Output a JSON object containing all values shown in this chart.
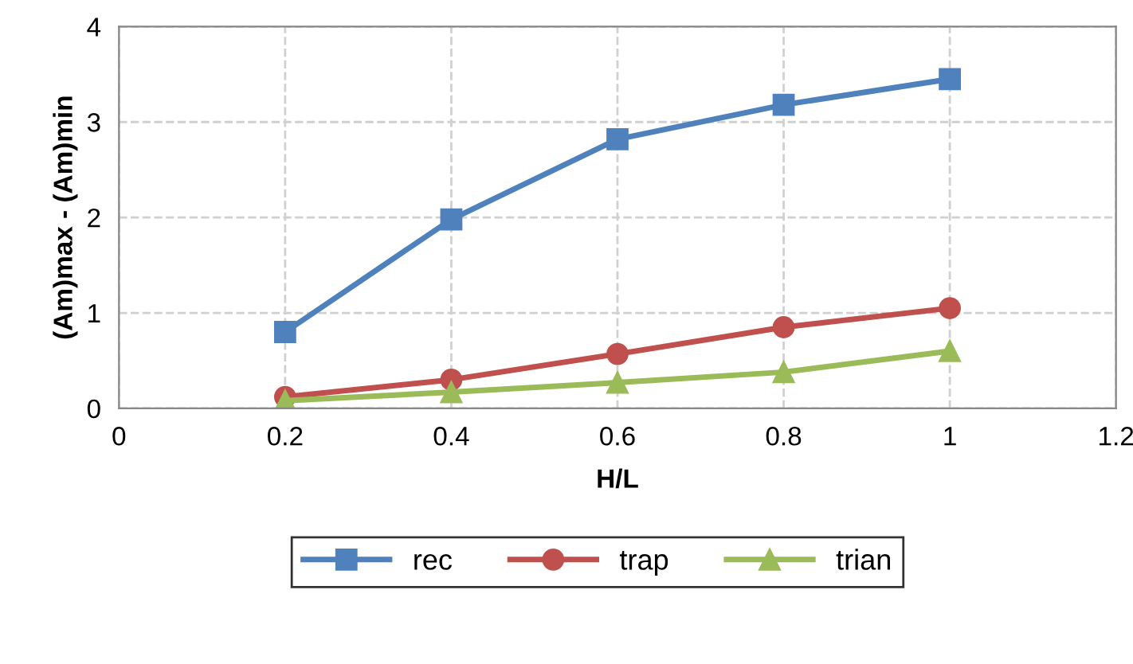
{
  "chart_data": {
    "type": "line",
    "xlabel": "H/L",
    "ylabel": "(Am)max - (Am)min",
    "x": [
      0.2,
      0.4,
      0.6,
      0.8,
      1.0
    ],
    "series": [
      {
        "name": "rec",
        "color": "#4f81bd",
        "marker": "square",
        "values": [
          0.8,
          1.98,
          2.82,
          3.18,
          3.45
        ]
      },
      {
        "name": "trap",
        "color": "#c0504d",
        "marker": "circle",
        "values": [
          0.12,
          0.3,
          0.57,
          0.85,
          1.05
        ]
      },
      {
        "name": "trian",
        "color": "#9bbb59",
        "marker": "triangle",
        "values": [
          0.08,
          0.17,
          0.27,
          0.38,
          0.6
        ]
      }
    ],
    "xlim": [
      0,
      1.2
    ],
    "xticks": [
      0,
      0.2,
      0.4,
      0.6,
      0.8,
      1,
      1.2
    ],
    "ylim": [
      0,
      4
    ],
    "yticks": [
      0,
      1,
      2,
      3,
      4
    ],
    "grid": true,
    "legend": "bottom",
    "line_style": "solid"
  }
}
